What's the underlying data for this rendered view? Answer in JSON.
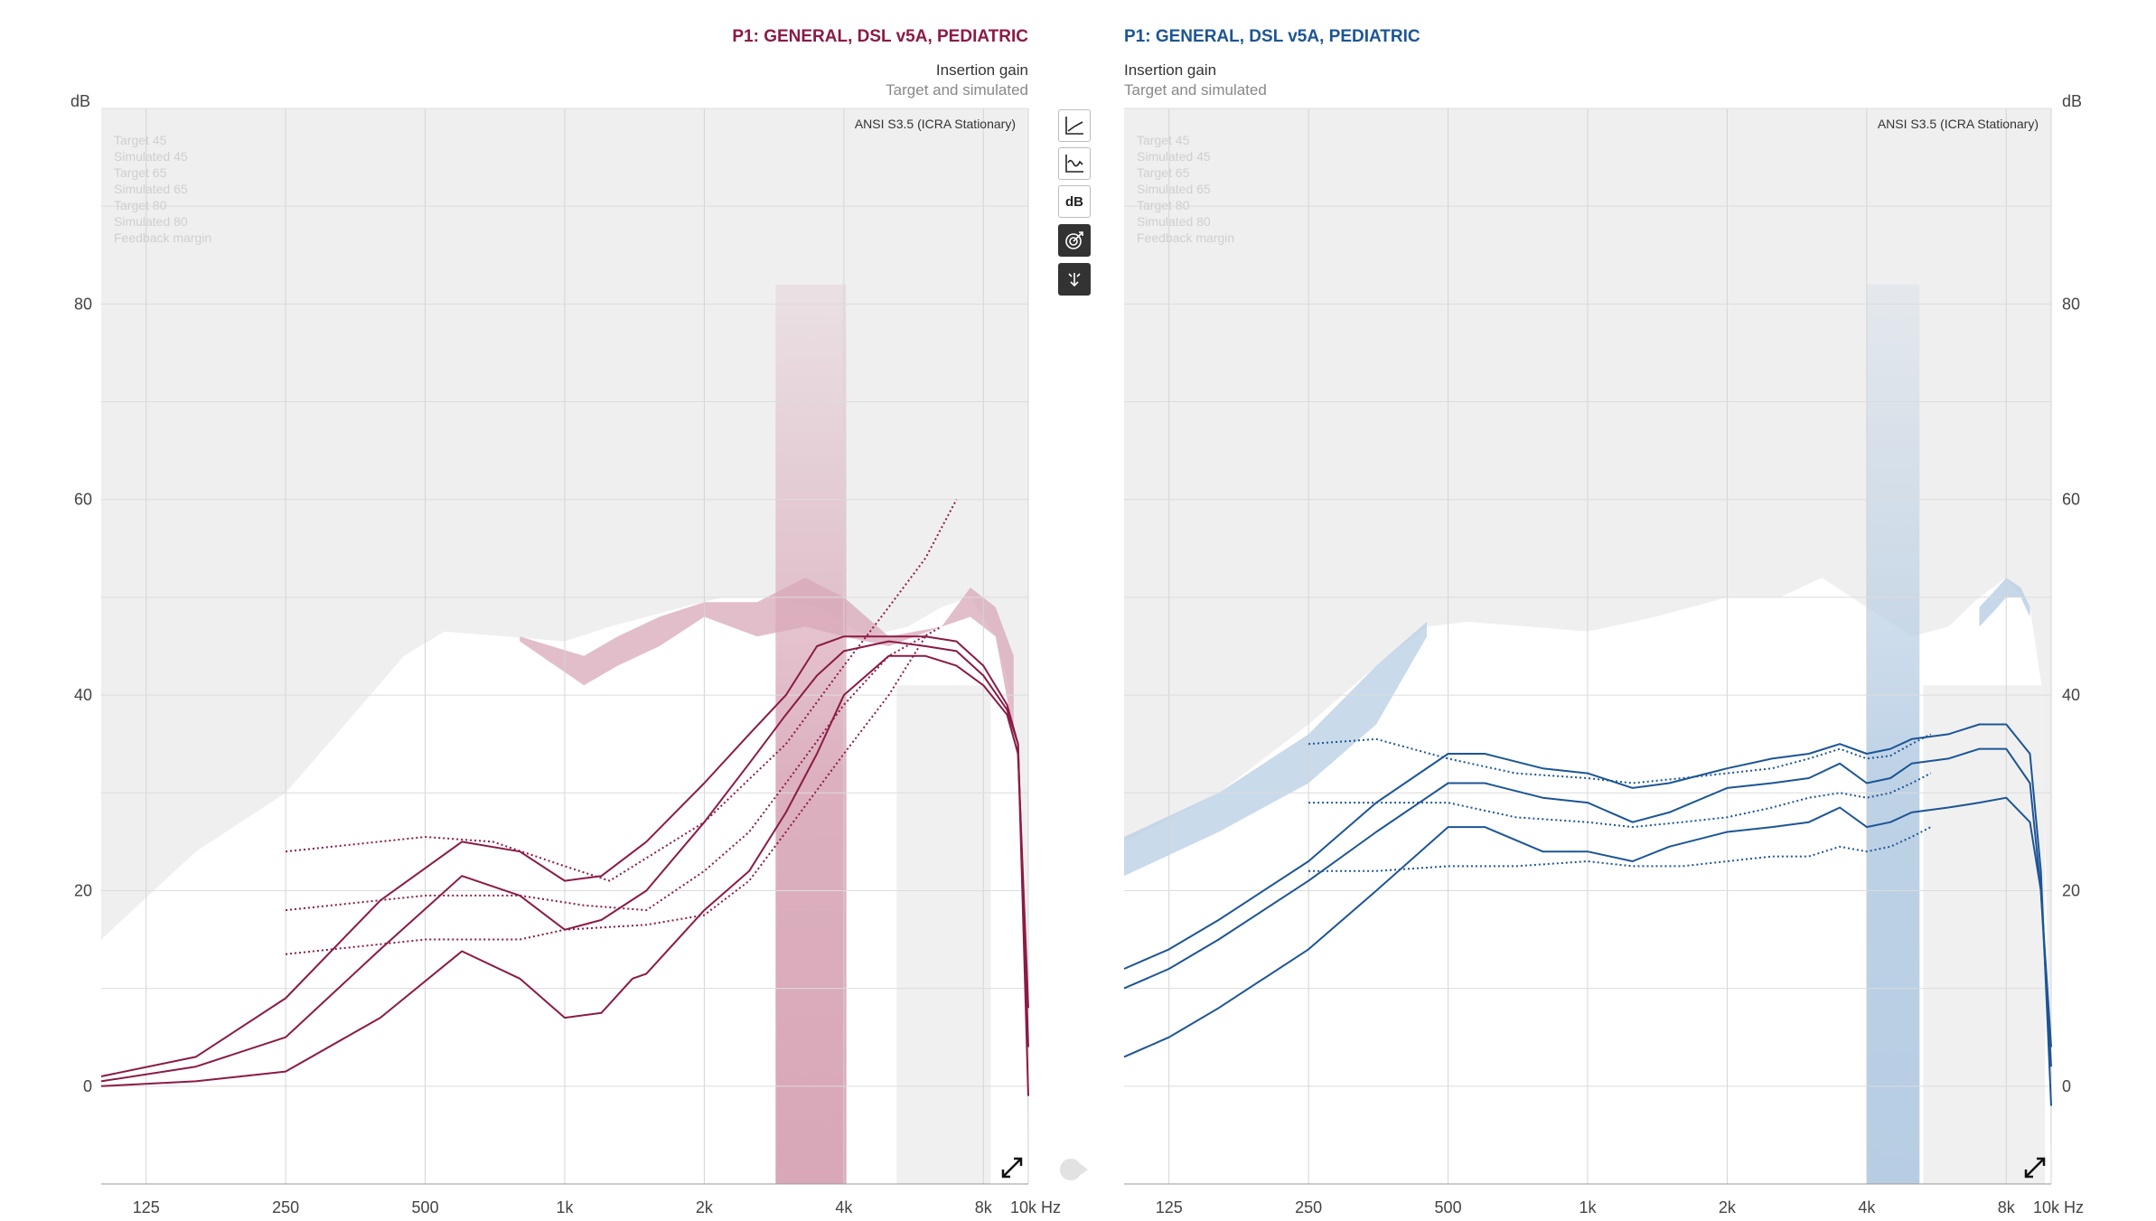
{
  "left_panel": {
    "title": "P1: GENERAL, DSL v5A, PEDIATRIC",
    "subtitle": "Insertion gain",
    "subtitle2": "Target and simulated",
    "standard": "ANSI S3.5 (ICRA Stationary)",
    "legend": [
      "Target 45",
      "Simulated 45",
      "Target 65",
      "Simulated 65",
      "Target 80",
      "Simulated 80",
      "Feedback margin"
    ],
    "unit": "dB",
    "color": "#8b1a45",
    "shade_color": "#d8a7b8"
  },
  "right_panel": {
    "title": "P1: GENERAL, DSL v5A, PEDIATRIC",
    "subtitle": "Insertion gain",
    "subtitle2": "Target and simulated",
    "standard": "ANSI S3.5 (ICRA Stationary)",
    "legend": [
      "Target 45",
      "Simulated 45",
      "Target 65",
      "Simulated 65",
      "Target 80",
      "Simulated 80",
      "Feedback margin"
    ],
    "unit": "dB",
    "color": "#1c5595",
    "shade_color": "#b7cde3"
  },
  "x_ticks": [
    "125",
    "250",
    "500",
    "1k",
    "2k",
    "4k",
    "8k",
    "10k Hz"
  ],
  "y_ticks": [
    "80",
    "60",
    "40",
    "20",
    "0"
  ],
  "toolbar": {
    "buttons": [
      "curve-view-icon",
      "response-view-icon",
      "db-toggle",
      "target-icon",
      "pointer-icon"
    ],
    "db_label": "dB"
  },
  "chart_data": [
    {
      "type": "line",
      "title": "P1: GENERAL, DSL v5A, PEDIATRIC",
      "xscale": "log",
      "xlim": [
        100,
        10000
      ],
      "ylim": [
        -10,
        100
      ],
      "ylabel": "dB",
      "series": [
        {
          "name": "Target 45",
          "style": "dotted",
          "x": [
            250,
            500,
            700,
            1000,
            1250,
            2000,
            3000,
            4000,
            5000,
            6000,
            7000
          ],
          "y": [
            24,
            25.5,
            25,
            22.5,
            21,
            27,
            35,
            43,
            49,
            54,
            60
          ]
        },
        {
          "name": "Target 65",
          "style": "dotted",
          "x": [
            250,
            500,
            800,
            1100,
            1500,
            2000,
            2500,
            3000,
            4000,
            5000,
            6500
          ],
          "y": [
            18,
            19.5,
            19.5,
            18.5,
            18,
            22,
            26,
            31,
            39,
            44,
            47
          ]
        },
        {
          "name": "Target 80",
          "style": "dotted",
          "x": [
            250,
            500,
            800,
            1000,
            1500,
            2000,
            2500,
            3000,
            4000,
            5000,
            6000
          ],
          "y": [
            13.5,
            15,
            15,
            16,
            16.5,
            17.5,
            21,
            26,
            34,
            40,
            46
          ]
        },
        {
          "name": "Simulated 45",
          "style": "solid",
          "x": [
            100,
            160,
            250,
            400,
            600,
            800,
            1000,
            1200,
            1500,
            2000,
            2500,
            3000,
            3500,
            4000,
            5000,
            6000,
            7000,
            8000,
            9000,
            9500,
            10000
          ],
          "y": [
            1,
            3,
            9,
            19,
            25,
            24,
            21,
            21.5,
            25,
            31,
            36,
            40,
            45,
            46,
            46,
            46,
            45.5,
            43,
            39,
            35,
            -1
          ]
        },
        {
          "name": "Simulated 65",
          "style": "solid",
          "x": [
            100,
            160,
            250,
            400,
            600,
            800,
            1000,
            1200,
            1500,
            2000,
            2500,
            3000,
            3500,
            4000,
            5000,
            6000,
            7000,
            8000,
            9000,
            9500,
            10000
          ],
          "y": [
            0.5,
            2,
            5,
            14,
            21.5,
            19.5,
            16,
            17,
            20,
            27,
            33,
            38,
            42,
            44.5,
            45.5,
            45,
            44.5,
            42,
            38.5,
            35,
            4
          ]
        },
        {
          "name": "Simulated 80",
          "style": "solid",
          "x": [
            100,
            160,
            250,
            400,
            600,
            800,
            1000,
            1200,
            1400,
            1500,
            2000,
            2500,
            3000,
            3500,
            4000,
            5000,
            6000,
            7000,
            8000,
            9000,
            9500,
            10000
          ],
          "y": [
            0,
            0.5,
            1.5,
            7,
            13.8,
            11,
            7,
            7.5,
            11,
            11.5,
            18,
            22,
            28,
            34,
            40,
            44,
            44,
            43,
            41,
            38,
            34,
            8
          ]
        }
      ]
    },
    {
      "type": "line",
      "title": "P1: GENERAL, DSL v5A, PEDIATRIC",
      "xscale": "log",
      "xlim": [
        100,
        10000
      ],
      "ylim": [
        -10,
        100
      ],
      "ylabel": "dB",
      "series": [
        {
          "name": "Target 45",
          "style": "dotted",
          "x": [
            250,
            350,
            500,
            700,
            1000,
            1250,
            1600,
            2000,
            2500,
            3000,
            3500,
            4000,
            4500,
            5000,
            5500
          ],
          "y": [
            35,
            35.5,
            33.5,
            32,
            31.5,
            31,
            31.5,
            32,
            32.5,
            33.5,
            34.5,
            33.5,
            33.8,
            35,
            36
          ]
        },
        {
          "name": "Target 65",
          "style": "dotted",
          "x": [
            250,
            400,
            500,
            700,
            1000,
            1250,
            1600,
            2000,
            2500,
            3000,
            3500,
            4000,
            4500,
            5000,
            5500
          ],
          "y": [
            29,
            29,
            29,
            27.5,
            27,
            26.5,
            27,
            27.5,
            28.5,
            29.5,
            30,
            29.5,
            30,
            31,
            32
          ]
        },
        {
          "name": "Target 80",
          "style": "dotted",
          "x": [
            250,
            350,
            500,
            700,
            1000,
            1250,
            1600,
            2000,
            2500,
            3000,
            3500,
            4000,
            4500,
            5000,
            5500
          ],
          "y": [
            22,
            22,
            22.5,
            22.5,
            23,
            22.5,
            22.5,
            23,
            23.5,
            23.5,
            24.5,
            24,
            24.5,
            25.5,
            26.5
          ]
        },
        {
          "name": "Simulated 45",
          "style": "solid",
          "x": [
            100,
            125,
            160,
            250,
            350,
            500,
            600,
            800,
            1000,
            1250,
            1500,
            2000,
            2500,
            3000,
            3500,
            4000,
            4500,
            5000,
            6000,
            7000,
            8000,
            9000,
            9500,
            10000
          ],
          "y": [
            12,
            14,
            17,
            23,
            29,
            34,
            34,
            32.5,
            32,
            30.5,
            31,
            32.5,
            33.5,
            34,
            35,
            34,
            34.5,
            35.5,
            36,
            37,
            37,
            34,
            22,
            -2
          ]
        },
        {
          "name": "Simulated 65",
          "style": "solid",
          "x": [
            100,
            125,
            160,
            250,
            350,
            500,
            600,
            800,
            1000,
            1250,
            1500,
            2000,
            2500,
            3000,
            3500,
            4000,
            4500,
            5000,
            6000,
            7000,
            8000,
            9000,
            9500,
            10000
          ],
          "y": [
            10,
            12,
            15,
            21,
            26,
            31,
            31,
            29.5,
            29,
            27,
            28,
            30.5,
            31,
            31.5,
            33,
            31,
            31.5,
            33,
            33.5,
            34.5,
            34.5,
            31,
            20,
            4
          ]
        },
        {
          "name": "Simulated 80",
          "style": "solid",
          "x": [
            100,
            125,
            160,
            250,
            350,
            500,
            600,
            800,
            1000,
            1250,
            1500,
            2000,
            2500,
            3000,
            3500,
            4000,
            4500,
            5000,
            6000,
            7000,
            8000,
            9000,
            9500,
            10000
          ],
          "y": [
            3,
            5,
            8,
            14,
            20,
            26.5,
            26.5,
            24,
            24,
            23,
            24.5,
            26,
            26.5,
            27,
            28.5,
            26.5,
            27,
            28,
            28.5,
            29,
            29.5,
            27,
            20,
            2
          ]
        }
      ]
    }
  ]
}
